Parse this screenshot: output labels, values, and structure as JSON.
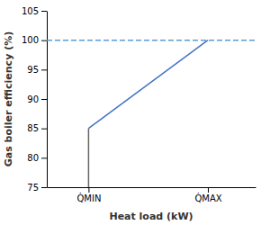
{
  "chart_data": {
    "type": "line",
    "xlabel": "Heat load (kW)",
    "ylabel": "Gas boiler efficiency (%)",
    "xlim": [
      0.3,
      3.8
    ],
    "xticks": [
      {
        "value": 1,
        "label": "Q̇MIN"
      },
      {
        "value": 3,
        "label": "Q̇MAX"
      }
    ],
    "ylim": [
      75,
      105
    ],
    "yticks": [
      75,
      80,
      85,
      90,
      95,
      100,
      105
    ],
    "grid": false,
    "series": [
      {
        "x": [
          0.3,
          3.8
        ],
        "values": [
          100,
          100
        ],
        "color": "#5B9BD5",
        "line_style": "dashed"
      },
      {
        "x": [
          1,
          1
        ],
        "values": [
          75,
          85
        ],
        "color": "#666666",
        "line_style": "solid"
      },
      {
        "x": [
          1,
          3
        ],
        "values": [
          85,
          100
        ],
        "color": "#4472C4",
        "line_style": "solid"
      }
    ]
  }
}
